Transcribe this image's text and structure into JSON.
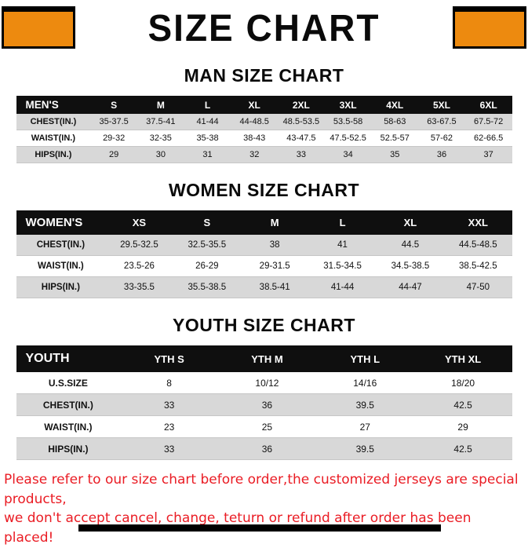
{
  "banner": {
    "title": "SIZE CHART"
  },
  "colors": {
    "accent_orange": "#ED8A0F",
    "table_header_black": "#0f0f0f",
    "row_stripe_grey": "#d8d8d8",
    "footer_red": "#ea1c24"
  },
  "sections": {
    "men": {
      "heading": "MAN SIZE CHART",
      "table": {
        "header": [
          "MEN'S",
          "S",
          "M",
          "L",
          "XL",
          "2XL",
          "3XL",
          "4XL",
          "5XL",
          "6XL"
        ],
        "rows": [
          [
            "CHEST(IN.)",
            "35-37.5",
            "37.5-41",
            "41-44",
            "44-48.5",
            "48.5-53.5",
            "53.5-58",
            "58-63",
            "63-67.5",
            "67.5-72"
          ],
          [
            "WAIST(IN.)",
            "29-32",
            "32-35",
            "35-38",
            "38-43",
            "43-47.5",
            "47.5-52.5",
            "52.5-57",
            "57-62",
            "62-66.5"
          ],
          [
            "HIPS(IN.)",
            "29",
            "30",
            "31",
            "32",
            "33",
            "34",
            "35",
            "36",
            "37"
          ]
        ]
      }
    },
    "women": {
      "heading": "WOMEN SIZE CHART",
      "table": {
        "header": [
          "WOMEN'S",
          "XS",
          "S",
          "M",
          "L",
          "XL",
          "XXL"
        ],
        "rows": [
          [
            "CHEST(IN.)",
            "29.5-32.5",
            "32.5-35.5",
            "38",
            "41",
            "44.5",
            "44.5-48.5"
          ],
          [
            "WAIST(IN.)",
            "23.5-26",
            "26-29",
            "29-31.5",
            "31.5-34.5",
            "34.5-38.5",
            "38.5-42.5"
          ],
          [
            "HIPS(IN.)",
            "33-35.5",
            "35.5-38.5",
            "38.5-41",
            "41-44",
            "44-47",
            "47-50"
          ]
        ]
      }
    },
    "youth": {
      "heading": "YOUTH SIZE CHART",
      "table": {
        "header": [
          "YOUTH",
          "YTH S",
          "YTH M",
          "YTH L",
          "YTH XL"
        ],
        "rows": [
          [
            "U.S.SIZE",
            "8",
            "10/12",
            "14/16",
            "18/20"
          ],
          [
            "CHEST(IN.)",
            "33",
            "36",
            "39.5",
            "42.5"
          ],
          [
            "WAIST(IN.)",
            "23",
            "25",
            "27",
            "29"
          ],
          [
            "HIPS(IN.)",
            "33",
            "36",
            "39.5",
            "42.5"
          ]
        ]
      }
    }
  },
  "footer": {
    "line1": "Please refer to our size chart before order,the customized jerseys are special products,",
    "line2": "we don't accept cancel, change, teturn or refund after order has been placed!"
  }
}
